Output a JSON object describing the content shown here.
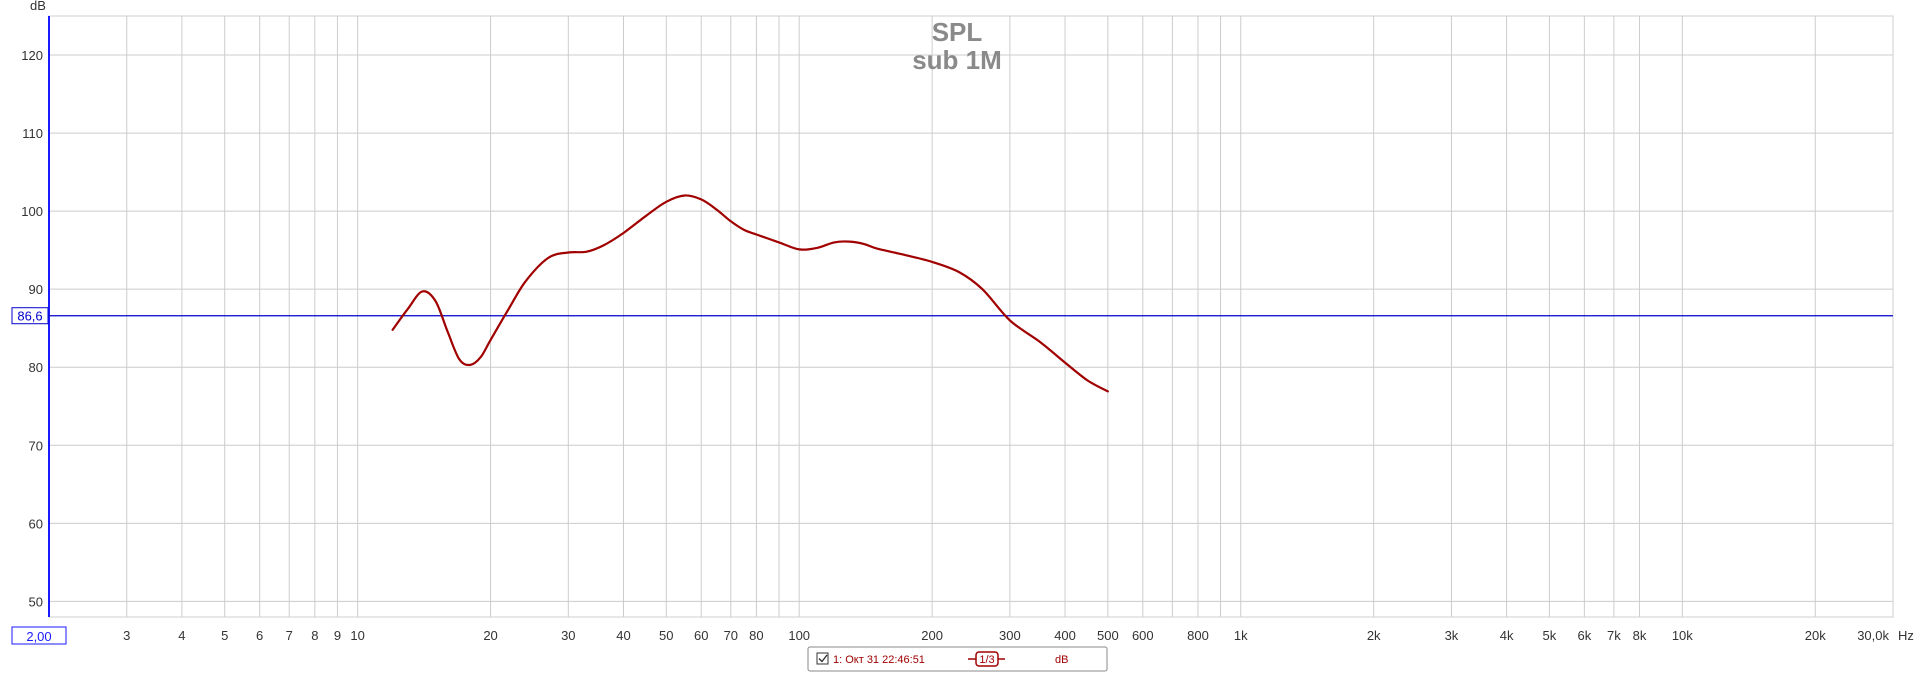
{
  "chart_data": {
    "type": "line",
    "title": "SPL",
    "subtitle": "sub 1M",
    "y_unit": "dB",
    "x_unit": "Hz",
    "x_scale": "log",
    "xlim": [
      2,
      30000
    ],
    "ylim": [
      48,
      125
    ],
    "grid": true,
    "x_ticks": [
      {
        "v": 2,
        "label": "2,00"
      },
      {
        "v": 3,
        "label": "3"
      },
      {
        "v": 4,
        "label": "4"
      },
      {
        "v": 5,
        "label": "5"
      },
      {
        "v": 6,
        "label": "6"
      },
      {
        "v": 7,
        "label": "7"
      },
      {
        "v": 8,
        "label": "8"
      },
      {
        "v": 9,
        "label": "9"
      },
      {
        "v": 10,
        "label": "10"
      },
      {
        "v": 20,
        "label": "20"
      },
      {
        "v": 30,
        "label": "30"
      },
      {
        "v": 40,
        "label": "40"
      },
      {
        "v": 50,
        "label": "50"
      },
      {
        "v": 60,
        "label": "60"
      },
      {
        "v": 70,
        "label": "70"
      },
      {
        "v": 80,
        "label": "80"
      },
      {
        "v": 100,
        "label": "100"
      },
      {
        "v": 200,
        "label": "200"
      },
      {
        "v": 300,
        "label": "300"
      },
      {
        "v": 400,
        "label": "400"
      },
      {
        "v": 500,
        "label": "500"
      },
      {
        "v": 600,
        "label": "600"
      },
      {
        "v": 800,
        "label": "800"
      },
      {
        "v": 1000,
        "label": "1k"
      },
      {
        "v": 2000,
        "label": "2k"
      },
      {
        "v": 3000,
        "label": "3k"
      },
      {
        "v": 4000,
        "label": "4k"
      },
      {
        "v": 5000,
        "label": "5k"
      },
      {
        "v": 6000,
        "label": "6k"
      },
      {
        "v": 7000,
        "label": "7k"
      },
      {
        "v": 8000,
        "label": "8k"
      },
      {
        "v": 10000,
        "label": "10k"
      },
      {
        "v": 20000,
        "label": "20k"
      },
      {
        "v": 30000,
        "label": "30,0k"
      }
    ],
    "y_ticks": [
      50,
      60,
      70,
      80,
      90,
      100,
      110,
      120
    ],
    "reference_line": {
      "value": 86.6,
      "label": "86,6",
      "color": "#0000cc"
    },
    "series": [
      {
        "color": "#a00000",
        "x": [
          12,
          13,
          14,
          15,
          16,
          17,
          18,
          19,
          20,
          22,
          24,
          27,
          30,
          33,
          36,
          40,
          45,
          50,
          55,
          60,
          65,
          70,
          75,
          80,
          90,
          100,
          110,
          120,
          130,
          140,
          150,
          170,
          200,
          230,
          260,
          300,
          350,
          400,
          450,
          500
        ],
        "y": [
          84.8,
          87.5,
          89.7,
          88.5,
          84.5,
          81.0,
          80.3,
          81.3,
          83.5,
          87.5,
          91.0,
          94.0,
          94.7,
          94.8,
          95.6,
          97.2,
          99.4,
          101.2,
          102.0,
          101.5,
          100.2,
          98.7,
          97.6,
          97.0,
          96.0,
          95.1,
          95.3,
          96.0,
          96.1,
          95.8,
          95.2,
          94.5,
          93.5,
          92.2,
          90.0,
          86.0,
          83.3,
          80.6,
          78.3,
          76.9
        ]
      }
    ],
    "legend": {
      "checked": true,
      "entry": "1: Окт 31 22:46:51",
      "smoothing": "1/3",
      "unit": "dB"
    }
  }
}
